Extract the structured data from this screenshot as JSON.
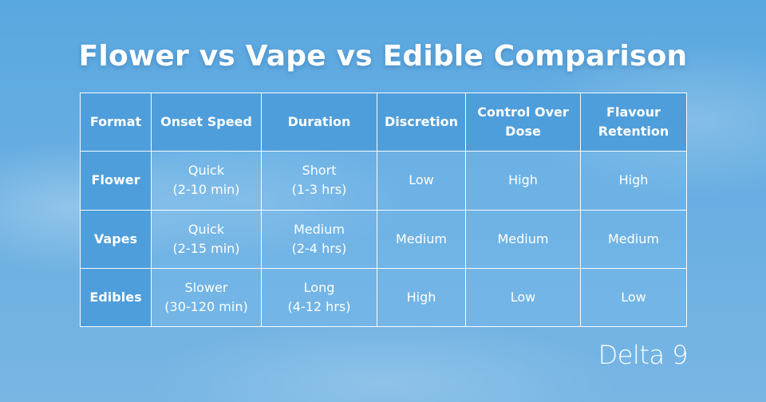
{
  "title": "Flower vs Vape vs Edible Comparison",
  "table": {
    "header": [
      "Format",
      "Onset Speed",
      "Duration",
      "Discretion",
      "Control Over\nDose",
      "Flavour\nRetention"
    ],
    "rows": [
      [
        "Flower",
        "Quick\n(2-10 min)",
        "Short\n(1-3 hrs)",
        "Low",
        "High",
        "High"
      ],
      [
        "Vapes",
        "Quick\n(2-15 min)",
        "Medium\n(2-4 hrs)",
        "Medium",
        "Medium",
        "Medium"
      ],
      [
        "Edibles",
        "Slower\n(30-120 min)",
        "Long\n(4-12 hrs)",
        "High",
        "Low",
        "Low"
      ]
    ]
  },
  "logo": "Delta 9"
}
